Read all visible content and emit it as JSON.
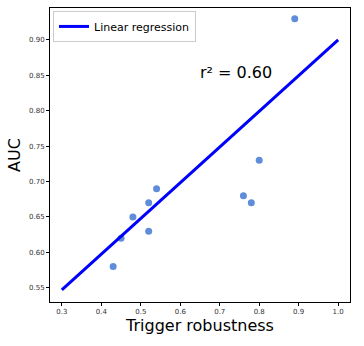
{
  "chart_data": {
    "type": "scatter",
    "x_label": "Trigger robustness",
    "y_label": "AUC",
    "series": [
      {
        "type": "scatter",
        "color": "#4f81d6",
        "marker": "circle",
        "x": [
          0.43,
          0.45,
          0.48,
          0.52,
          0.52,
          0.54,
          0.76,
          0.78,
          0.8,
          0.89
        ],
        "values": [
          0.58,
          0.62,
          0.65,
          0.67,
          0.63,
          0.69,
          0.68,
          0.67,
          0.73,
          0.93
        ]
      },
      {
        "name": "Linear regression",
        "type": "line",
        "color": "#0000ff",
        "line_style": "solid",
        "x": [
          0.3,
          1.0
        ],
        "values": [
          0.547,
          0.9
        ]
      }
    ],
    "annotations": [
      {
        "text": "r² = 0.60"
      }
    ],
    "xlim": [
      0.27,
      1.03
    ],
    "xticks": [
      0.3,
      0.4,
      0.5,
      0.6,
      0.7,
      0.8,
      0.9,
      {
        "value": 1,
        "label": "1.0"
      }
    ],
    "ylim": [
      0.53,
      0.945
    ],
    "yticks": [
      0.55,
      {
        "value": 0.6,
        "label": "0.60"
      },
      0.65,
      {
        "value": 0.7,
        "label": "0.70"
      },
      0.75,
      {
        "value": 0.8,
        "label": "0.80"
      },
      0.85,
      {
        "value": 0.9,
        "label": "0.90"
      }
    ],
    "grid": false,
    "legend": "upper left"
  }
}
